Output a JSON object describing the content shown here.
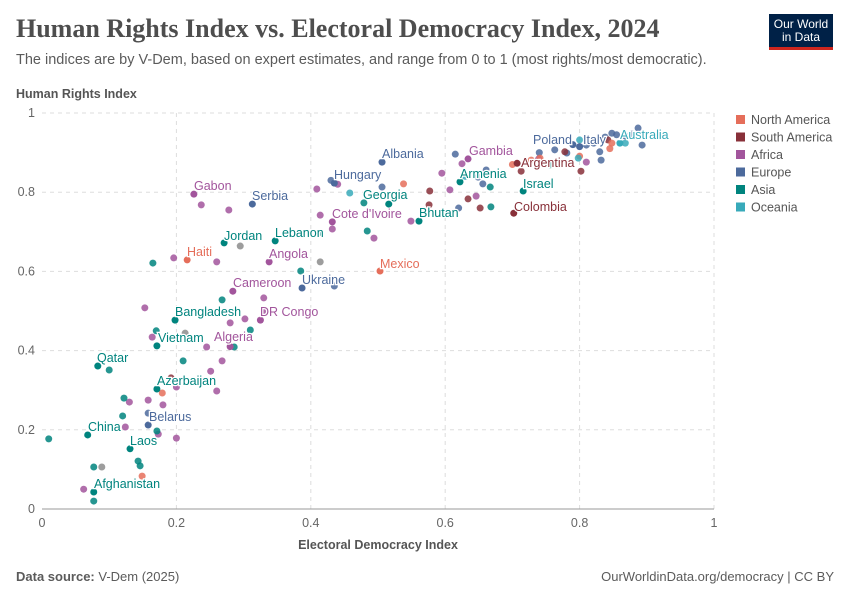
{
  "header": {
    "title": "Human Rights Index vs. Electoral Democracy Index, 2024",
    "subtitle": "The indices are by V-Dem, based on expert estimates, and range from 0 to 1 (most rights/most democratic).",
    "logo": "Our World in Data"
  },
  "footer": {
    "source_label": "Data source:",
    "source": "V-Dem (2025)",
    "link": "OurWorldinData.org/democracy | CC BY"
  },
  "chart_data": {
    "type": "scatter",
    "xlabel": "Electoral Democracy Index",
    "ylabel": "Human Rights Index",
    "xlim": [
      0,
      1
    ],
    "ylim": [
      0,
      1
    ],
    "xticks": [
      "0",
      "0.2",
      "0.4",
      "0.6",
      "0.8",
      "1"
    ],
    "yticks": [
      "0",
      "0.2",
      "0.4",
      "0.6",
      "0.8",
      "1"
    ],
    "grid": true,
    "legend_placement": "right",
    "legend": [
      {
        "name": "North America",
        "color": "#E56E5A"
      },
      {
        "name": "South America",
        "color": "#883039"
      },
      {
        "name": "Africa",
        "color": "#A2559C"
      },
      {
        "name": "Europe",
        "color": "#4C6A9C"
      },
      {
        "name": "Asia",
        "color": "#00847E"
      },
      {
        "name": "Oceania",
        "color": "#38AABA"
      }
    ],
    "other_color": "#8c8c8c",
    "labeled": [
      {
        "name": "Afghanistan",
        "region": "Asia",
        "x": 0.077,
        "y": 0.043
      },
      {
        "name": "Laos",
        "region": "Asia",
        "x": 0.131,
        "y": 0.152
      },
      {
        "name": "China",
        "region": "Asia",
        "x": 0.068,
        "y": 0.187
      },
      {
        "name": "Belarus",
        "region": "Europe",
        "x": 0.158,
        "y": 0.212
      },
      {
        "name": "Azerbaijan",
        "region": "Asia",
        "x": 0.171,
        "y": 0.303
      },
      {
        "name": "Qatar",
        "region": "Asia",
        "x": 0.083,
        "y": 0.361
      },
      {
        "name": "Vietnam",
        "region": "Asia",
        "x": 0.171,
        "y": 0.412
      },
      {
        "name": "Algeria",
        "region": "Africa",
        "x": 0.28,
        "y": 0.41
      },
      {
        "name": "Bangladesh",
        "region": "Asia",
        "x": 0.198,
        "y": 0.477
      },
      {
        "name": "DR Congo",
        "region": "Africa",
        "x": 0.325,
        "y": 0.477
      },
      {
        "name": "Cameroon",
        "region": "Africa",
        "x": 0.284,
        "y": 0.55
      },
      {
        "name": "Ukraine",
        "region": "Europe",
        "x": 0.387,
        "y": 0.558
      },
      {
        "name": "Angola",
        "region": "Africa",
        "x": 0.338,
        "y": 0.624
      },
      {
        "name": "Haiti",
        "region": "North America",
        "x": 0.216,
        "y": 0.629
      },
      {
        "name": "Jordan",
        "region": "Asia",
        "x": 0.271,
        "y": 0.672
      },
      {
        "name": "Lebanon",
        "region": "Asia",
        "x": 0.347,
        "y": 0.677
      },
      {
        "name": "Gabon",
        "region": "Africa",
        "x": 0.226,
        "y": 0.795
      },
      {
        "name": "Serbia",
        "region": "Europe",
        "x": 0.313,
        "y": 0.77
      },
      {
        "name": "Mexico",
        "region": "North America",
        "x": 0.503,
        "y": 0.601
      },
      {
        "name": "Cote d'Ivoire",
        "region": "Africa",
        "x": 0.432,
        "y": 0.725
      },
      {
        "name": "Hungary",
        "region": "Europe",
        "x": 0.435,
        "y": 0.823
      },
      {
        "name": "Albania",
        "region": "Europe",
        "x": 0.506,
        "y": 0.876
      },
      {
        "name": "Georgia",
        "region": "Asia",
        "x": 0.516,
        "y": 0.77
      },
      {
        "name": "Bhutan",
        "region": "Asia",
        "x": 0.561,
        "y": 0.727
      },
      {
        "name": "Armenia",
        "region": "Asia",
        "x": 0.622,
        "y": 0.826
      },
      {
        "name": "Gambia",
        "region": "Africa",
        "x": 0.634,
        "y": 0.884
      },
      {
        "name": "Israel",
        "region": "Asia",
        "x": 0.716,
        "y": 0.803
      },
      {
        "name": "Colombia",
        "region": "South America",
        "x": 0.702,
        "y": 0.747
      },
      {
        "name": "Argentina",
        "region": "South America",
        "x": 0.707,
        "y": 0.873
      },
      {
        "name": "Poland",
        "region": "Europe",
        "x": 0.79,
        "y": 0.92
      },
      {
        "name": "Italy",
        "region": "Europe",
        "x": 0.8,
        "y": 0.915
      },
      {
        "name": "Australia",
        "region": "Oceania",
        "x": 0.86,
        "y": 0.924
      }
    ],
    "points": [
      [
        0.153,
        0.508,
        "Africa"
      ],
      [
        0.164,
        0.434,
        "Africa"
      ],
      [
        0.196,
        0.634,
        "Africa"
      ],
      [
        0.237,
        0.768,
        "Africa"
      ],
      [
        0.278,
        0.755,
        "Africa"
      ],
      [
        0.26,
        0.624,
        "Africa"
      ],
      [
        0.33,
        0.533,
        "Africa"
      ],
      [
        0.33,
        0.5,
        "Africa"
      ],
      [
        0.302,
        0.48,
        "Africa"
      ],
      [
        0.28,
        0.47,
        "Africa"
      ],
      [
        0.245,
        0.409,
        "Africa"
      ],
      [
        0.268,
        0.374,
        "Africa"
      ],
      [
        0.251,
        0.348,
        "Africa"
      ],
      [
        0.26,
        0.298,
        "Africa"
      ],
      [
        0.158,
        0.275,
        "Africa"
      ],
      [
        0.13,
        0.27,
        "Africa"
      ],
      [
        0.124,
        0.207,
        "Africa"
      ],
      [
        0.173,
        0.189,
        "Africa"
      ],
      [
        0.2,
        0.179,
        "Africa"
      ],
      [
        0.18,
        0.263,
        "Africa"
      ],
      [
        0.2,
        0.308,
        "Africa"
      ],
      [
        0.062,
        0.05,
        "Africa"
      ],
      [
        0.414,
        0.742,
        "Africa"
      ],
      [
        0.432,
        0.707,
        "Africa"
      ],
      [
        0.494,
        0.684,
        "Africa"
      ],
      [
        0.549,
        0.727,
        "Africa"
      ],
      [
        0.595,
        0.848,
        "Africa"
      ],
      [
        0.607,
        0.806,
        "Africa"
      ],
      [
        0.409,
        0.808,
        "Africa"
      ],
      [
        0.646,
        0.79,
        "Africa"
      ],
      [
        0.739,
        0.884,
        "Africa"
      ],
      [
        0.81,
        0.876,
        "Africa"
      ],
      [
        0.625,
        0.872,
        "Africa"
      ],
      [
        0.44,
        0.82,
        "Africa"
      ],
      [
        0.01,
        0.177,
        "Asia"
      ],
      [
        0.165,
        0.621,
        "Asia"
      ],
      [
        0.122,
        0.28,
        "Asia"
      ],
      [
        0.12,
        0.235,
        "Asia"
      ],
      [
        0.143,
        0.121,
        "Asia"
      ],
      [
        0.146,
        0.109,
        "Asia"
      ],
      [
        0.077,
        0.106,
        "Asia"
      ],
      [
        0.171,
        0.197,
        "Asia"
      ],
      [
        0.21,
        0.374,
        "Asia"
      ],
      [
        0.31,
        0.452,
        "Asia"
      ],
      [
        0.268,
        0.528,
        "Asia"
      ],
      [
        0.411,
        0.697,
        "Asia"
      ],
      [
        0.385,
        0.601,
        "Asia"
      ],
      [
        0.479,
        0.773,
        "Asia"
      ],
      [
        0.484,
        0.702,
        "Asia"
      ],
      [
        0.667,
        0.813,
        "Asia"
      ],
      [
        0.668,
        0.763,
        "Asia"
      ],
      [
        0.756,
        0.869,
        "Asia"
      ],
      [
        0.286,
        0.409,
        "Asia"
      ],
      [
        0.077,
        0.02,
        "Asia"
      ],
      [
        0.1,
        0.351,
        "Asia"
      ],
      [
        0.17,
        0.45,
        "Asia"
      ],
      [
        0.661,
        0.856,
        "Europe"
      ],
      [
        0.649,
        0.838,
        "Europe"
      ],
      [
        0.615,
        0.896,
        "Europe"
      ],
      [
        0.506,
        0.813,
        "Europe"
      ],
      [
        0.763,
        0.907,
        "Europe"
      ],
      [
        0.781,
        0.899,
        "Europe"
      ],
      [
        0.821,
        0.924,
        "Europe"
      ],
      [
        0.838,
        0.939,
        "Europe"
      ],
      [
        0.848,
        0.949,
        "Europe"
      ],
      [
        0.855,
        0.945,
        "Europe"
      ],
      [
        0.868,
        0.942,
        "Europe"
      ],
      [
        0.83,
        0.902,
        "Europe"
      ],
      [
        0.878,
        0.947,
        "Europe"
      ],
      [
        0.887,
        0.962,
        "Europe"
      ],
      [
        0.893,
        0.919,
        "Europe"
      ],
      [
        0.832,
        0.881,
        "Europe"
      ],
      [
        0.81,
        0.919,
        "Europe"
      ],
      [
        0.786,
        0.874,
        "Europe"
      ],
      [
        0.62,
        0.76,
        "Europe"
      ],
      [
        0.656,
        0.821,
        "Europe"
      ],
      [
        0.158,
        0.242,
        "Europe"
      ],
      [
        0.435,
        0.563,
        "Europe"
      ],
      [
        0.43,
        0.83,
        "Europe"
      ],
      [
        0.74,
        0.9,
        "Europe"
      ],
      [
        0.713,
        0.853,
        "South America"
      ],
      [
        0.802,
        0.853,
        "South America"
      ],
      [
        0.634,
        0.783,
        "South America"
      ],
      [
        0.652,
        0.76,
        "South America"
      ],
      [
        0.577,
        0.803,
        "South America"
      ],
      [
        0.576,
        0.768,
        "South America"
      ],
      [
        0.778,
        0.902,
        "South America"
      ],
      [
        0.842,
        0.932,
        "South America"
      ],
      [
        0.192,
        0.331,
        "South America"
      ],
      [
        0.538,
        0.821,
        "North America"
      ],
      [
        0.179,
        0.293,
        "North America"
      ],
      [
        0.149,
        0.083,
        "North America"
      ],
      [
        0.741,
        0.886,
        "North America"
      ],
      [
        0.8,
        0.891,
        "North America"
      ],
      [
        0.848,
        0.924,
        "North America"
      ],
      [
        0.845,
        0.91,
        "North America"
      ],
      [
        0.728,
        0.881,
        "North America"
      ],
      [
        0.7,
        0.87,
        "North America"
      ],
      [
        0.458,
        0.798,
        "Oceania"
      ],
      [
        0.662,
        0.846,
        "Oceania"
      ],
      [
        0.798,
        0.886,
        "Oceania"
      ],
      [
        0.8,
        0.932,
        "Oceania"
      ],
      [
        0.868,
        0.924,
        "Oceania"
      ],
      [
        0.63,
        0.84,
        "Oceania"
      ],
      [
        0.295,
        0.664,
        ""
      ],
      [
        0.414,
        0.624,
        ""
      ],
      [
        0.089,
        0.106,
        ""
      ],
      [
        0.213,
        0.444,
        ""
      ]
    ]
  }
}
